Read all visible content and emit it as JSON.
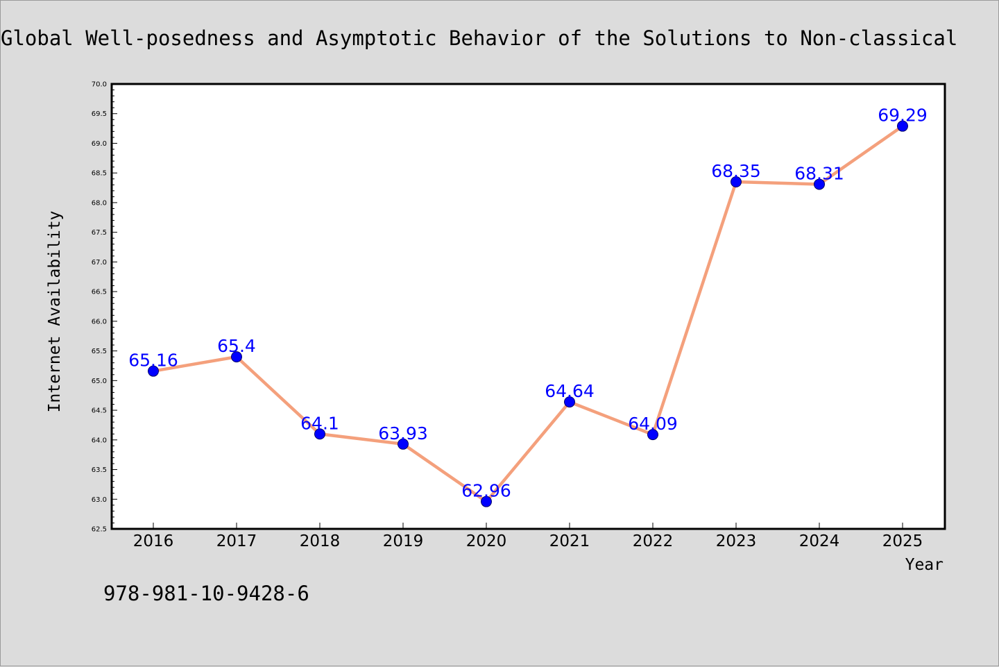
{
  "chart_data": {
    "type": "line",
    "title": "Global Well-posedness and Asymptotic Behavior of the Solutions to Non-classical",
    "xlabel": "Year",
    "ylabel": "Internet Availability",
    "categories": [
      "2016",
      "2017",
      "2018",
      "2019",
      "2020",
      "2021",
      "2022",
      "2023",
      "2024",
      "2025"
    ],
    "series": [
      {
        "values": [
          65.16,
          65.4,
          64.1,
          63.93,
          62.96,
          64.64,
          64.09,
          68.35,
          68.31,
          69.29
        ],
        "labels": [
          "65.16",
          "65.4",
          "64.1",
          "63.93",
          "62.96",
          "64.64",
          "64.09",
          "68.35",
          "68.31",
          "69.29"
        ]
      }
    ],
    "ylim": [
      62.5,
      70.0
    ],
    "yticks": [
      "62.5",
      "63.0",
      "63.5",
      "64.0",
      "64.5",
      "65.0",
      "65.5",
      "66.0",
      "66.5",
      "67.0",
      "67.5",
      "68.0",
      "68.5",
      "69.0",
      "69.5",
      "70.0"
    ],
    "grid": false,
    "legend": "none",
    "colors": {
      "line": "#f4a07c",
      "marker": "#0000ff",
      "label": "#0000ff",
      "background": "#dcdcdc",
      "plot_background": "#ffffff"
    }
  },
  "footer": {
    "isbn": "978-981-10-9428-6"
  }
}
